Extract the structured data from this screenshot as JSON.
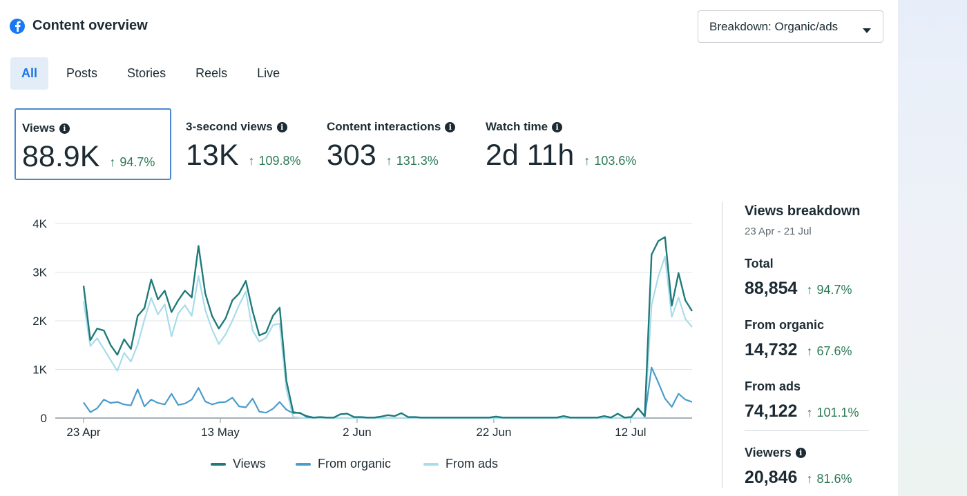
{
  "header": {
    "title": "Content overview",
    "logo_icon": "facebook-logo-icon"
  },
  "breakdown_button": {
    "label": "Breakdown: Organic/ads",
    "icon": "caret-down-icon"
  },
  "tabs": [
    {
      "label": "All",
      "active": true
    },
    {
      "label": "Posts",
      "active": false
    },
    {
      "label": "Stories",
      "active": false
    },
    {
      "label": "Reels",
      "active": false
    },
    {
      "label": "Live",
      "active": false
    }
  ],
  "metrics": [
    {
      "label": "Views",
      "value": "88.9K",
      "change": "94.7%",
      "selected": true
    },
    {
      "label": "3-second views",
      "value": "13K",
      "change": "109.8%",
      "selected": false
    },
    {
      "label": "Content interactions",
      "value": "303",
      "change": "131.3%",
      "selected": false
    },
    {
      "label": "Watch time",
      "value": "2d 11h",
      "change": "103.6%",
      "selected": false
    }
  ],
  "breakdown": {
    "title": "Views breakdown",
    "range": "23 Apr - 21 Jul",
    "items": [
      {
        "label": "Total",
        "value": "88,854",
        "change": "94.7%"
      },
      {
        "label": "From organic",
        "value": "14,732",
        "change": "67.6%"
      },
      {
        "label": "From ads",
        "value": "74,122",
        "change": "101.1%"
      },
      {
        "label": "Viewers",
        "value": "20,846",
        "change": "81.6%"
      }
    ]
  },
  "colors": {
    "views": "#1f7a7a",
    "organic": "#4a9ccc",
    "ads": "#a8dcea",
    "positive": "#2b7a56",
    "accent": "#1b74e4"
  },
  "chart_data": {
    "type": "line",
    "ylim": [
      0,
      4000
    ],
    "y_ticks": [
      "0",
      "1K",
      "2K",
      "3K",
      "4K"
    ],
    "x_tick_labels": [
      "23 Apr",
      "13 May",
      "2 Jun",
      "22 Jun",
      "12 Jul"
    ],
    "x_tick_days": [
      0,
      20,
      40,
      60,
      80
    ],
    "x_start_day": 0,
    "x_end_day": 89,
    "grid": true,
    "legend_position": "bottom",
    "series": [
      {
        "name": "Views",
        "color": "#1f7a7a",
        "values": [
          2720,
          1600,
          1840,
          1800,
          1500,
          1300,
          1620,
          1420,
          2100,
          2260,
          2850,
          2440,
          2620,
          2180,
          2420,
          2620,
          2480,
          3540,
          2560,
          2100,
          1840,
          2050,
          2420,
          2560,
          2820,
          2200,
          1700,
          1760,
          2100,
          2270,
          760,
          120,
          100,
          40,
          10,
          20,
          10,
          10,
          80,
          90,
          20,
          20,
          10,
          10,
          30,
          60,
          40,
          100,
          20,
          20,
          10,
          10,
          10,
          10,
          10,
          10,
          10,
          10,
          10,
          10,
          10,
          30,
          10,
          10,
          10,
          10,
          10,
          10,
          10,
          10,
          10,
          40,
          10,
          10,
          10,
          10,
          10,
          40,
          10,
          90,
          10,
          20,
          200,
          40,
          3360,
          3640,
          3720,
          2310,
          2980,
          2420,
          2200
        ],
        "days": []
      },
      {
        "name": "From organic",
        "color": "#4a9ccc",
        "values": [
          320,
          120,
          200,
          380,
          310,
          330,
          280,
          260,
          590,
          240,
          380,
          310,
          280,
          500,
          270,
          300,
          380,
          620,
          340,
          280,
          320,
          330,
          420,
          240,
          220,
          400,
          130,
          110,
          190,
          330,
          170,
          100,
          110,
          20,
          10,
          20,
          10,
          10,
          80,
          90,
          20,
          20,
          10,
          10,
          30,
          60,
          40,
          100,
          20,
          20,
          10,
          10,
          10,
          10,
          10,
          10,
          10,
          10,
          10,
          10,
          10,
          30,
          10,
          10,
          10,
          10,
          10,
          10,
          10,
          10,
          10,
          40,
          10,
          10,
          10,
          10,
          10,
          40,
          10,
          90,
          10,
          20,
          200,
          30,
          1040,
          730,
          400,
          230,
          500,
          380,
          330
        ],
        "days": []
      },
      {
        "name": "From ads",
        "color": "#a8dcea",
        "values": [
          2400,
          1480,
          1640,
          1420,
          1190,
          970,
          1340,
          1160,
          1510,
          2020,
          2470,
          2130,
          2340,
          1680,
          2150,
          2320,
          2100,
          2920,
          2220,
          1820,
          1520,
          1720,
          2000,
          2320,
          2600,
          1800,
          1570,
          1650,
          1910,
          1940,
          590,
          20,
          10,
          0,
          0,
          0,
          0,
          0,
          0,
          0,
          0,
          0,
          0,
          0,
          0,
          0,
          0,
          0,
          0,
          0,
          0,
          0,
          0,
          0,
          0,
          0,
          0,
          0,
          0,
          0,
          0,
          0,
          0,
          0,
          0,
          0,
          0,
          0,
          0,
          0,
          0,
          0,
          0,
          0,
          0,
          0,
          0,
          0,
          0,
          0,
          0,
          0,
          0,
          10,
          2320,
          2910,
          3320,
          2080,
          2480,
          2040,
          1870
        ],
        "days": []
      }
    ]
  }
}
